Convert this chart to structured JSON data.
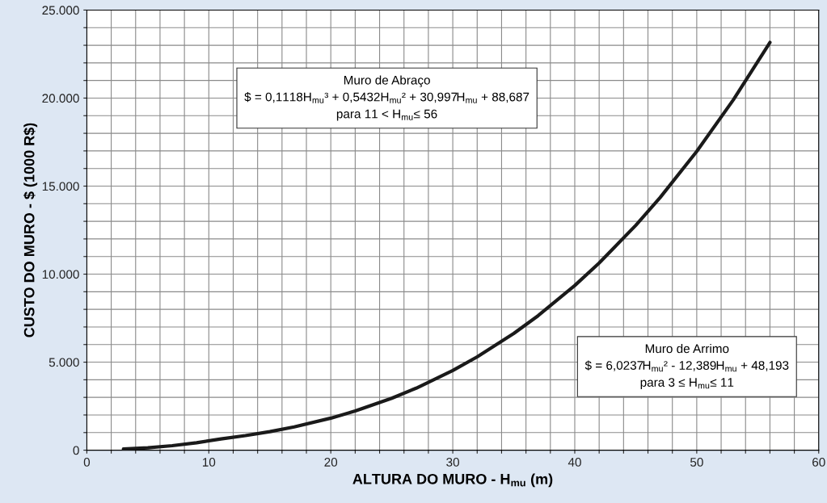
{
  "chart_data": {
    "type": "line",
    "xlabel": "ALTURA DO MURO - H$_{mu}$ (m)",
    "ylabel": "CUSTO DO MURO - $ (1000 R$)",
    "x": [
      3,
      5,
      7,
      9,
      11,
      13,
      15,
      17,
      20,
      22,
      25,
      27,
      30,
      32,
      35,
      37,
      40,
      42,
      45,
      47,
      50,
      53,
      56
    ],
    "series": [
      {
        "color": "#1a1a1a",
        "values": [
          65,
          137,
          257,
          425,
          641,
          829,
          1053,
          1322,
          1820,
          2224,
          2950,
          3522,
          4526,
          5301,
          6632,
          7642,
          9353,
          10632,
          12771,
          14353,
          16972,
          19902,
          23162
        ]
      }
    ],
    "xlim": [
      0,
      60
    ],
    "xticks": [
      0,
      {
        "value": 2,
        "label": null
      },
      {
        "value": 4,
        "label": null
      },
      {
        "value": 6,
        "label": null
      },
      {
        "value": 8,
        "label": null
      },
      10,
      {
        "value": 12,
        "label": null
      },
      {
        "value": 14,
        "label": null
      },
      {
        "value": 16,
        "label": null
      },
      {
        "value": 18,
        "label": null
      },
      20,
      {
        "value": 22,
        "label": null
      },
      {
        "value": 24,
        "label": null
      },
      {
        "value": 26,
        "label": null
      },
      {
        "value": 28,
        "label": null
      },
      30,
      {
        "value": 32,
        "label": null
      },
      {
        "value": 34,
        "label": null
      },
      {
        "value": 36,
        "label": null
      },
      {
        "value": 38,
        "label": null
      },
      40,
      {
        "value": 42,
        "label": null
      },
      {
        "value": 44,
        "label": null
      },
      {
        "value": 46,
        "label": null
      },
      {
        "value": 48,
        "label": null
      },
      50,
      {
        "value": 52,
        "label": null
      },
      {
        "value": 54,
        "label": null
      },
      {
        "value": 56,
        "label": null
      },
      {
        "value": 58,
        "label": null
      },
      60
    ],
    "ylim": [
      0,
      25000
    ],
    "yticks": [
      0,
      {
        "value": 1000,
        "label": null
      },
      {
        "value": 2000,
        "label": null
      },
      {
        "value": 3000,
        "label": null
      },
      {
        "value": 4000,
        "label": null
      },
      {
        "value": 5000,
        "label": "5.000"
      },
      {
        "value": 6000,
        "label": null
      },
      {
        "value": 7000,
        "label": null
      },
      {
        "value": 8000,
        "label": null
      },
      {
        "value": 9000,
        "label": null
      },
      {
        "value": 10000,
        "label": "10.000"
      },
      {
        "value": 11000,
        "label": null
      },
      {
        "value": 12000,
        "label": null
      },
      {
        "value": 13000,
        "label": null
      },
      {
        "value": 14000,
        "label": null
      },
      {
        "value": 15000,
        "label": "15.000"
      },
      {
        "value": 16000,
        "label": null
      },
      {
        "value": 17000,
        "label": null
      },
      {
        "value": 18000,
        "label": null
      },
      {
        "value": 19000,
        "label": null
      },
      {
        "value": 20000,
        "label": "20.000"
      },
      {
        "value": 21000,
        "label": null
      },
      {
        "value": 22000,
        "label": null
      },
      {
        "value": 23000,
        "label": null
      },
      {
        "value": 24000,
        "label": null
      },
      {
        "value": 25000,
        "label": "25.000"
      }
    ],
    "grid": true,
    "line_style": "solid",
    "annotations": [
      "Muro de Abraço\n$ = 0,1118H$_{mu}$³ + 0,5432H$_{mu}$² + 30,997H$_{mu}$ + 88,687\npara 11 < H$_{mu}$≤ 56",
      "Muro de Arrimo\n$ = 6,0237H$_{mu}$² - 12,389H$_{mu}$ + 48,193\npara 3 ≤ H$_{mu}$≤ 11"
    ]
  }
}
